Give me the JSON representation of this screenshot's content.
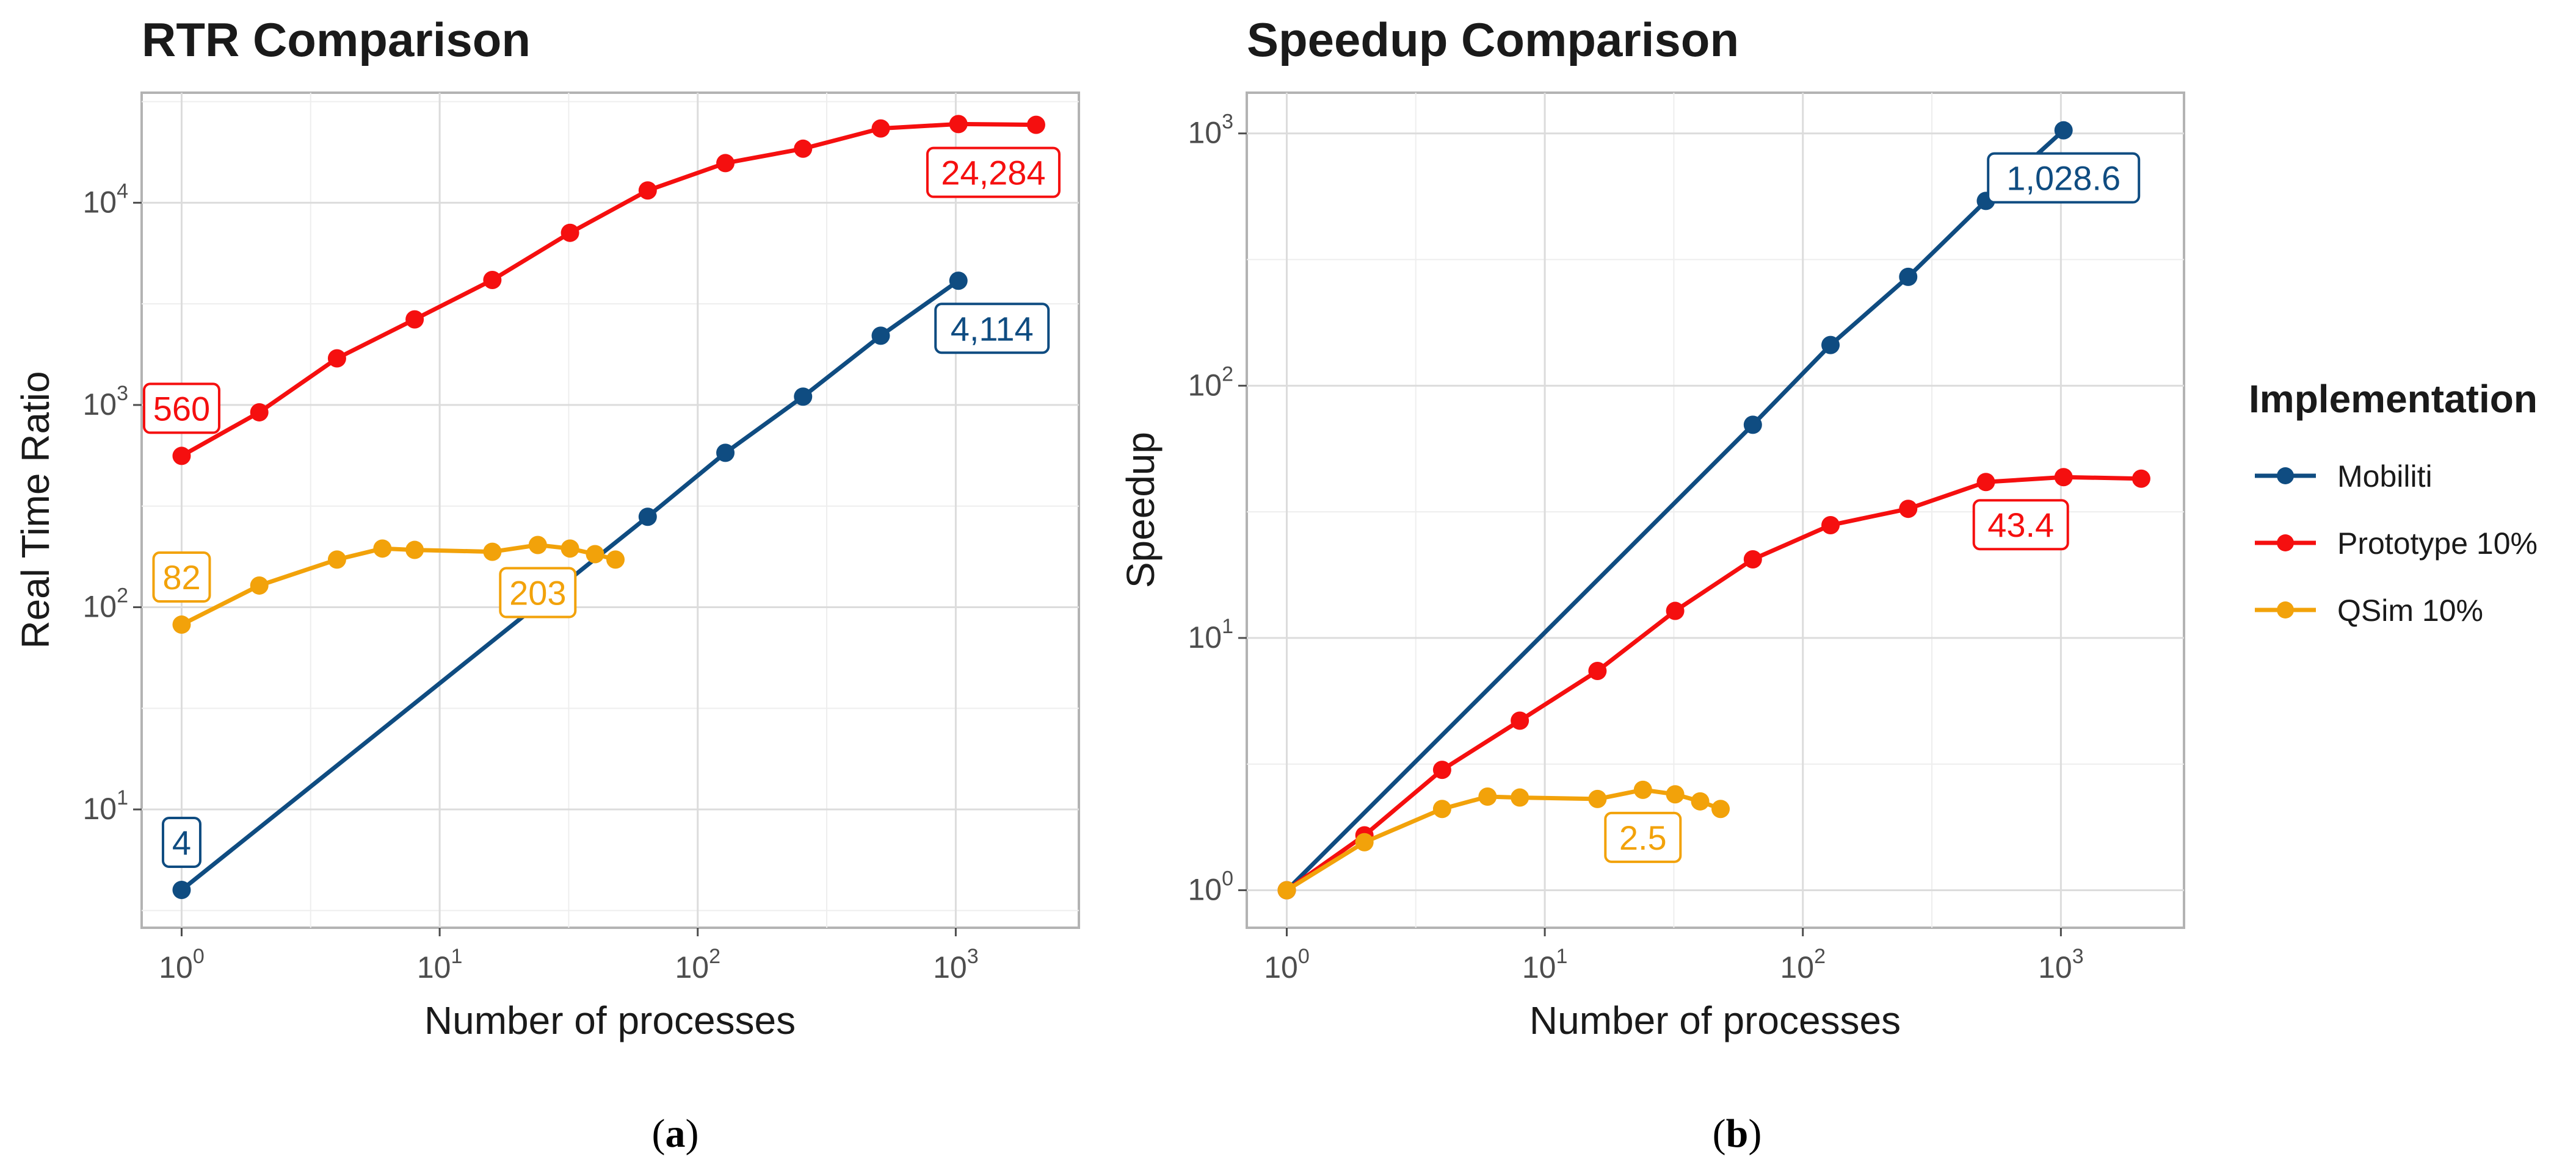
{
  "colors": {
    "Mobiliti": "#0f4c81",
    "Prototype 10%": "#f50f0f",
    "QSim 10%": "#f2a20a",
    "grid_major": "#dcdcdc",
    "grid_minor": "#eeeeee",
    "panel_border": "#b3b3b3"
  },
  "legend": {
    "title": "Implementation",
    "items": [
      "Mobiliti",
      "Prototype 10%",
      "QSim 10%"
    ]
  },
  "chart_data": [
    {
      "type": "line",
      "title": "RTR Comparison",
      "xlabel": "Number of processes",
      "ylabel": "Real Time Ratio",
      "xscale": "log10",
      "yscale": "log10",
      "xlim": [
        0.7,
        3000
      ],
      "ylim": [
        2.6,
        35000
      ],
      "x_ticks": [
        1,
        10,
        100,
        1000
      ],
      "y_ticks": [
        10,
        100,
        1000,
        10000
      ],
      "grid": true,
      "caption": {
        "open": "(",
        "letter": "a",
        "close": ")"
      },
      "series": [
        {
          "name": "Mobiliti",
          "x": [
            1,
            64,
            128,
            256,
            512,
            1024
          ],
          "y": [
            4,
            280,
            580,
            1100,
            2200,
            4114
          ]
        },
        {
          "name": "Prototype 10%",
          "x": [
            1,
            2,
            4,
            8,
            16,
            32,
            64,
            128,
            256,
            512,
            1024,
            2048
          ],
          "y": [
            560,
            920,
            1700,
            2650,
            4150,
            7100,
            11500,
            15700,
            18500,
            23300,
            24500,
            24284
          ]
        },
        {
          "name": "QSim 10%",
          "x": [
            1,
            2,
            4,
            6,
            8,
            16,
            24,
            32,
            40,
            48
          ],
          "y": [
            82,
            128,
            172,
            195,
            192,
            188,
            203,
            195,
            183,
            172
          ]
        }
      ],
      "annotations": [
        {
          "series": "Prototype 10%",
          "text": "560",
          "x": 1,
          "y": 560,
          "placement": "above"
        },
        {
          "series": "Prototype 10%",
          "text": "24,284",
          "x": 2048,
          "y": 24284,
          "placement": "below-left"
        },
        {
          "series": "Mobiliti",
          "text": "4,114",
          "x": 1024,
          "y": 4114,
          "placement": "below-right"
        },
        {
          "series": "Mobiliti",
          "text": "4",
          "x": 1,
          "y": 4,
          "placement": "above"
        },
        {
          "series": "QSim 10%",
          "text": "82",
          "x": 1,
          "y": 82,
          "placement": "above"
        },
        {
          "series": "QSim 10%",
          "text": "203",
          "x": 24,
          "y": 203,
          "placement": "below"
        }
      ]
    },
    {
      "type": "line",
      "title": "Speedup Comparison",
      "xlabel": "Number of processes",
      "ylabel": "Speedup",
      "xscale": "log10",
      "yscale": "log10",
      "xlim": [
        0.7,
        3000
      ],
      "ylim": [
        0.71,
        1450
      ],
      "x_ticks": [
        1,
        10,
        100,
        1000
      ],
      "y_ticks": [
        1,
        10,
        100,
        1000
      ],
      "grid": true,
      "caption": {
        "open": "(",
        "letter": "b",
        "close": ")"
      },
      "series": [
        {
          "name": "Mobiliti",
          "x": [
            1,
            64,
            128,
            256,
            512,
            1024
          ],
          "y": [
            1,
            70,
            145,
            270,
            540,
            1028.6
          ]
        },
        {
          "name": "Prototype 10%",
          "x": [
            1,
            2,
            4,
            8,
            16,
            32,
            64,
            128,
            256,
            512,
            1024,
            2048
          ],
          "y": [
            1,
            1.65,
            3.0,
            4.7,
            7.4,
            12.8,
            20.5,
            28,
            32.5,
            41.5,
            43.4,
            42.8
          ]
        },
        {
          "name": "QSim 10%",
          "x": [
            1,
            2,
            4,
            6,
            8,
            16,
            24,
            32,
            40,
            48
          ],
          "y": [
            1,
            1.55,
            2.1,
            2.35,
            2.33,
            2.3,
            2.5,
            2.4,
            2.25,
            2.1
          ]
        }
      ],
      "annotations": [
        {
          "series": "Mobiliti",
          "text": "1,028.6",
          "x": 1024,
          "y": 1028.6,
          "placement": "below"
        },
        {
          "series": "Prototype 10%",
          "text": "43.4",
          "x": 1024,
          "y": 43.4,
          "placement": "below-left"
        },
        {
          "series": "QSim 10%",
          "text": "2.5",
          "x": 24,
          "y": 2.5,
          "placement": "below"
        }
      ]
    }
  ]
}
